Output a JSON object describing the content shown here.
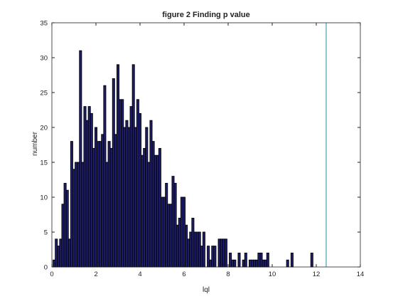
{
  "chart_data": {
    "type": "bar",
    "title": "figure 2 Finding p value",
    "xlabel": "lql",
    "ylabel": "number",
    "xlim": [
      0,
      14
    ],
    "ylim": [
      0,
      35
    ],
    "xticks": [
      "0",
      "2",
      "4",
      "6",
      "8",
      "10",
      "12",
      "14"
    ],
    "yticks": [
      "0",
      "5",
      "10",
      "15",
      "20",
      "25",
      "30",
      "35"
    ],
    "bin_width": 0.1,
    "x": [
      0.1,
      0.2,
      0.3,
      0.4,
      0.5,
      0.6,
      0.7,
      0.8,
      0.9,
      1.0,
      1.1,
      1.2,
      1.3,
      1.4,
      1.5,
      1.6,
      1.7,
      1.8,
      1.9,
      2.0,
      2.1,
      2.2,
      2.3,
      2.4,
      2.5,
      2.6,
      2.7,
      2.8,
      2.9,
      3.0,
      3.1,
      3.2,
      3.3,
      3.4,
      3.5,
      3.6,
      3.7,
      3.8,
      3.9,
      4.0,
      4.1,
      4.2,
      4.3,
      4.4,
      4.5,
      4.6,
      4.7,
      4.8,
      4.9,
      5.0,
      5.1,
      5.2,
      5.3,
      5.4,
      5.5,
      5.6,
      5.7,
      5.8,
      5.9,
      6.0,
      6.1,
      6.2,
      6.3,
      6.4,
      6.5,
      6.6,
      6.7,
      6.8,
      6.9,
      7.0,
      7.1,
      7.2,
      7.3,
      7.4,
      7.5,
      7.6,
      7.7,
      7.8,
      7.9,
      8.0,
      8.1,
      8.2,
      8.3,
      8.4,
      8.5,
      8.6,
      8.7,
      8.8,
      8.9,
      9.0,
      9.1,
      9.2,
      9.3,
      9.4,
      9.5,
      9.6,
      9.7,
      9.8,
      10.7,
      10.9,
      11.8
    ],
    "values": [
      1,
      4,
      3,
      4,
      9,
      12,
      11,
      4,
      18,
      14,
      15,
      15,
      31,
      15,
      23,
      21,
      23,
      22,
      17,
      20,
      18,
      18,
      19,
      26,
      15,
      18,
      17,
      27,
      19,
      29,
      24,
      24,
      20,
      21,
      20,
      23,
      29,
      20,
      24,
      22,
      16,
      17,
      20,
      15,
      21,
      18,
      16,
      16,
      17,
      10,
      10,
      12,
      9,
      9,
      13,
      12,
      6,
      7,
      10,
      10,
      6,
      4,
      5,
      7,
      5,
      5,
      5,
      3,
      5,
      0,
      3,
      1,
      3,
      3,
      0,
      4,
      4,
      4,
      4,
      0,
      2,
      1,
      1,
      0,
      2,
      0,
      1,
      2,
      0,
      1,
      1,
      1,
      1,
      2,
      2,
      1,
      1,
      2,
      1,
      2,
      2
    ],
    "series_color": "#1f1f6b",
    "edge_color": "#000000",
    "reference_line": {
      "x": 12.45,
      "color": "#2a8aa8"
    },
    "grid": false,
    "legend": "none"
  }
}
